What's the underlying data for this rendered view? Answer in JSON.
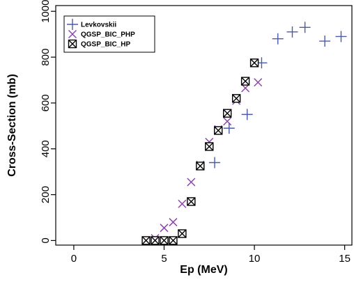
{
  "chart_data": {
    "type": "scatter",
    "title": "",
    "xlabel": "Ep (MeV)",
    "ylabel": "Cross-Section (mb)",
    "xlim": [
      -1,
      15.4
    ],
    "ylim": [
      -20,
      1025
    ],
    "xticks": [
      0,
      5,
      10,
      15
    ],
    "yticks": [
      0,
      200,
      400,
      600,
      800,
      1000
    ],
    "grid": false,
    "legend_position": "top-left",
    "series": [
      {
        "name": "Levkovskii",
        "marker": "plus",
        "color": "#4a5aa8",
        "points": [
          {
            "x": 7.8,
            "y": 340
          },
          {
            "x": 8.6,
            "y": 490
          },
          {
            "x": 9.6,
            "y": 550
          },
          {
            "x": 10.4,
            "y": 775
          },
          {
            "x": 11.3,
            "y": 880
          },
          {
            "x": 12.1,
            "y": 910
          },
          {
            "x": 12.8,
            "y": 930
          },
          {
            "x": 13.9,
            "y": 870
          },
          {
            "x": 14.8,
            "y": 890
          }
        ]
      },
      {
        "name": "QGSP_BIC_PHP",
        "marker": "cross",
        "color": "#8e44ad",
        "points": [
          {
            "x": 4.0,
            "y": 0
          },
          {
            "x": 4.5,
            "y": 10
          },
          {
            "x": 5.0,
            "y": 55
          },
          {
            "x": 5.5,
            "y": 80
          },
          {
            "x": 6.0,
            "y": 160
          },
          {
            "x": 6.5,
            "y": 255
          },
          {
            "x": 7.0,
            "y": 330
          },
          {
            "x": 7.5,
            "y": 430
          },
          {
            "x": 8.0,
            "y": 485
          },
          {
            "x": 8.5,
            "y": 520
          },
          {
            "x": 9.0,
            "y": 610
          },
          {
            "x": 9.5,
            "y": 665
          },
          {
            "x": 10.2,
            "y": 690
          }
        ]
      },
      {
        "name": "QGSP_BIC_HP",
        "marker": "boxed-x",
        "color": "#000000",
        "points": [
          {
            "x": 4.0,
            "y": 0
          },
          {
            "x": 4.5,
            "y": 0
          },
          {
            "x": 5.0,
            "y": 0
          },
          {
            "x": 5.5,
            "y": 0
          },
          {
            "x": 6.0,
            "y": 30
          },
          {
            "x": 6.5,
            "y": 170
          },
          {
            "x": 7.0,
            "y": 325
          },
          {
            "x": 7.5,
            "y": 410
          },
          {
            "x": 8.0,
            "y": 480
          },
          {
            "x": 8.5,
            "y": 555
          },
          {
            "x": 9.0,
            "y": 620
          },
          {
            "x": 9.5,
            "y": 695
          },
          {
            "x": 10.0,
            "y": 775
          }
        ]
      }
    ]
  }
}
